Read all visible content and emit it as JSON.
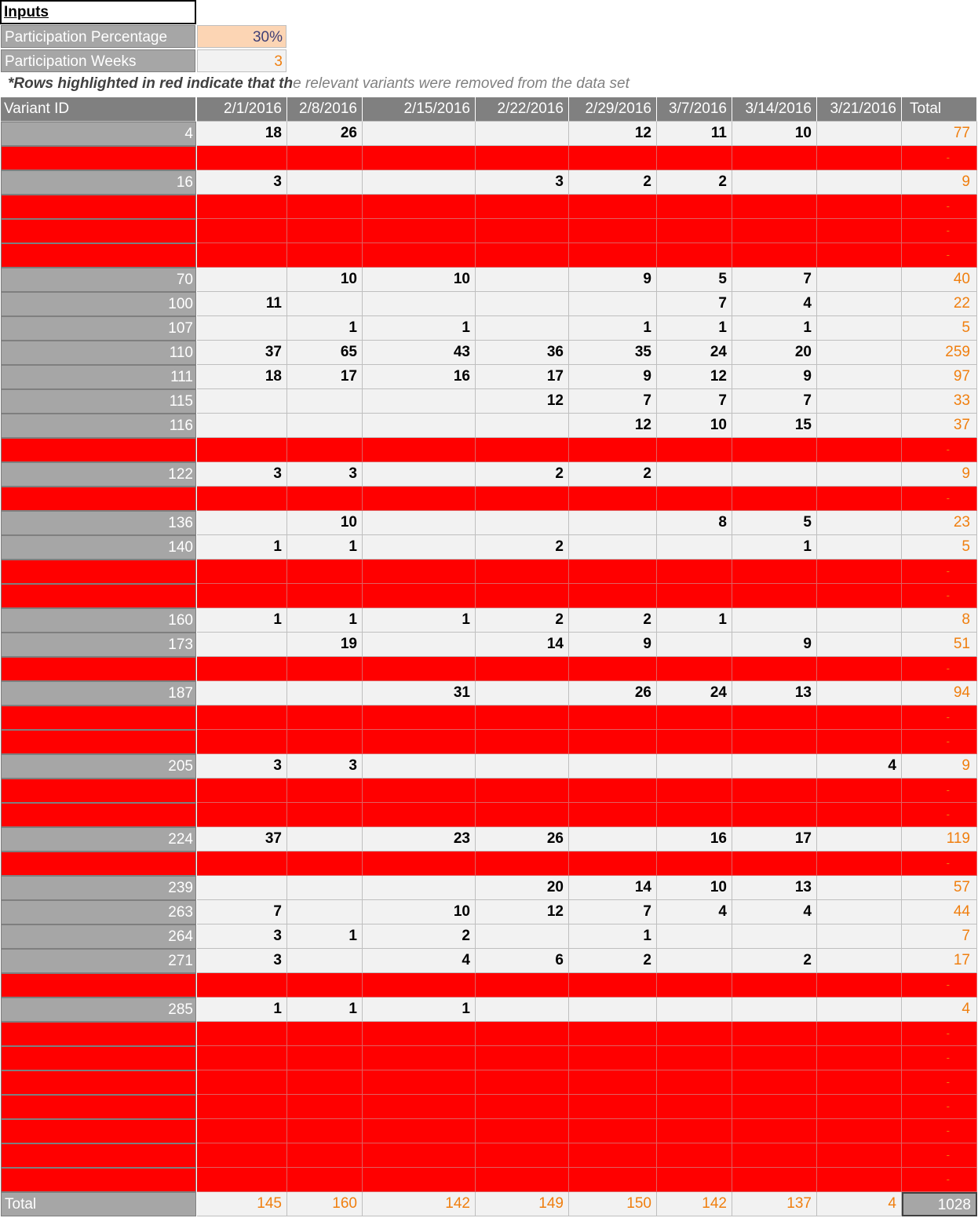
{
  "inputs": {
    "title": "Inputs",
    "participation_percentage": {
      "label": "Participation Percentage",
      "value": "30%"
    },
    "participation_weeks": {
      "label": "Participation Weeks",
      "value": "3"
    }
  },
  "note": {
    "bold_part": "*Rows highlighted in red indicate that th",
    "rest": "e relevant variants were removed from the data set"
  },
  "colors": {
    "removed": "#ff0000",
    "total_text": "#f07f0f",
    "header_bg": "#808080",
    "id_bg": "#a6a6a6"
  },
  "table": {
    "headers": [
      "Variant ID",
      "2/1/2016",
      "2/8/2016",
      "2/15/2016",
      "2/22/2016",
      "2/29/2016",
      "3/7/2016",
      "3/14/2016",
      "3/21/2016",
      "Total"
    ],
    "rows": [
      {
        "id": "4",
        "removed": false,
        "values": [
          "18",
          "26",
          "",
          "",
          "12",
          "11",
          "10",
          ""
        ],
        "total": "77"
      },
      {
        "id": "",
        "removed": true,
        "values": [
          "",
          "",
          "",
          "",
          "",
          "",
          "",
          ""
        ],
        "total": "-"
      },
      {
        "id": "16",
        "removed": false,
        "values": [
          "3",
          "",
          "",
          "3",
          "2",
          "2",
          "",
          ""
        ],
        "total": "9"
      },
      {
        "id": "",
        "removed": true,
        "values": [
          "",
          "",
          "",
          "",
          "",
          "",
          "",
          ""
        ],
        "total": "-"
      },
      {
        "id": "",
        "removed": true,
        "values": [
          "",
          "",
          "",
          "",
          "",
          "",
          "",
          ""
        ],
        "total": "-"
      },
      {
        "id": "",
        "removed": true,
        "values": [
          "",
          "",
          "",
          "",
          "",
          "",
          "",
          ""
        ],
        "total": "-"
      },
      {
        "id": "70",
        "removed": false,
        "values": [
          "",
          "10",
          "10",
          "",
          "9",
          "5",
          "7",
          ""
        ],
        "total": "40"
      },
      {
        "id": "100",
        "removed": false,
        "values": [
          "11",
          "",
          "",
          "",
          "",
          "7",
          "4",
          ""
        ],
        "total": "22"
      },
      {
        "id": "107",
        "removed": false,
        "values": [
          "",
          "1",
          "1",
          "",
          "1",
          "1",
          "1",
          ""
        ],
        "total": "5"
      },
      {
        "id": "110",
        "removed": false,
        "values": [
          "37",
          "65",
          "43",
          "36",
          "35",
          "24",
          "20",
          ""
        ],
        "total": "259"
      },
      {
        "id": "111",
        "removed": false,
        "values": [
          "18",
          "17",
          "16",
          "17",
          "9",
          "12",
          "9",
          ""
        ],
        "total": "97"
      },
      {
        "id": "115",
        "removed": false,
        "values": [
          "",
          "",
          "",
          "12",
          "7",
          "7",
          "7",
          ""
        ],
        "total": "33"
      },
      {
        "id": "116",
        "removed": false,
        "values": [
          "",
          "",
          "",
          "",
          "12",
          "10",
          "15",
          ""
        ],
        "total": "37"
      },
      {
        "id": "",
        "removed": true,
        "values": [
          "",
          "",
          "",
          "",
          "",
          "",
          "",
          ""
        ],
        "total": "-"
      },
      {
        "id": "122",
        "removed": false,
        "values": [
          "3",
          "3",
          "",
          "2",
          "2",
          "",
          "",
          ""
        ],
        "total": "9"
      },
      {
        "id": "",
        "removed": true,
        "values": [
          "",
          "",
          "",
          "",
          "",
          "",
          "",
          ""
        ],
        "total": "-"
      },
      {
        "id": "136",
        "removed": false,
        "values": [
          "",
          "10",
          "",
          "",
          "",
          "8",
          "5",
          ""
        ],
        "total": "23"
      },
      {
        "id": "140",
        "removed": false,
        "values": [
          "1",
          "1",
          "",
          "2",
          "",
          "",
          "1",
          ""
        ],
        "total": "5"
      },
      {
        "id": "",
        "removed": true,
        "values": [
          "",
          "",
          "",
          "",
          "",
          "",
          "",
          ""
        ],
        "total": "-"
      },
      {
        "id": "",
        "removed": true,
        "values": [
          "",
          "",
          "",
          "",
          "",
          "",
          "",
          ""
        ],
        "total": "-"
      },
      {
        "id": "160",
        "removed": false,
        "values": [
          "1",
          "1",
          "1",
          "2",
          "2",
          "1",
          "",
          ""
        ],
        "total": "8"
      },
      {
        "id": "173",
        "removed": false,
        "values": [
          "",
          "19",
          "",
          "14",
          "9",
          "",
          "9",
          ""
        ],
        "total": "51"
      },
      {
        "id": "",
        "removed": true,
        "values": [
          "",
          "",
          "",
          "",
          "",
          "",
          "",
          ""
        ],
        "total": "-"
      },
      {
        "id": "187",
        "removed": false,
        "values": [
          "",
          "",
          "31",
          "",
          "26",
          "24",
          "13",
          ""
        ],
        "total": "94"
      },
      {
        "id": "",
        "removed": true,
        "values": [
          "",
          "",
          "",
          "",
          "",
          "",
          "",
          ""
        ],
        "total": "-"
      },
      {
        "id": "",
        "removed": true,
        "values": [
          "",
          "",
          "",
          "",
          "",
          "",
          "",
          ""
        ],
        "total": "-"
      },
      {
        "id": "205",
        "removed": false,
        "values": [
          "3",
          "3",
          "",
          "",
          "",
          "",
          "",
          "4"
        ],
        "total": "9"
      },
      {
        "id": "",
        "removed": true,
        "values": [
          "",
          "",
          "",
          "",
          "",
          "",
          "",
          ""
        ],
        "total": "-"
      },
      {
        "id": "",
        "removed": true,
        "values": [
          "",
          "",
          "",
          "",
          "",
          "",
          "",
          ""
        ],
        "total": "-"
      },
      {
        "id": "224",
        "removed": false,
        "values": [
          "37",
          "",
          "23",
          "26",
          "",
          "16",
          "17",
          ""
        ],
        "total": "119"
      },
      {
        "id": "",
        "removed": true,
        "values": [
          "",
          "",
          "",
          "",
          "",
          "",
          "",
          ""
        ],
        "total": "-"
      },
      {
        "id": "239",
        "removed": false,
        "values": [
          "",
          "",
          "",
          "20",
          "14",
          "10",
          "13",
          ""
        ],
        "total": "57"
      },
      {
        "id": "263",
        "removed": false,
        "values": [
          "7",
          "",
          "10",
          "12",
          "7",
          "4",
          "4",
          ""
        ],
        "total": "44"
      },
      {
        "id": "264",
        "removed": false,
        "values": [
          "3",
          "1",
          "2",
          "",
          "1",
          "",
          "",
          ""
        ],
        "total": "7"
      },
      {
        "id": "271",
        "removed": false,
        "values": [
          "3",
          "",
          "4",
          "6",
          "2",
          "",
          "2",
          ""
        ],
        "total": "17"
      },
      {
        "id": "",
        "removed": true,
        "values": [
          "",
          "",
          "",
          "",
          "",
          "",
          "",
          ""
        ],
        "total": "-"
      },
      {
        "id": "285",
        "removed": false,
        "values": [
          "1",
          "1",
          "1",
          "",
          "",
          "",
          "",
          ""
        ],
        "total": "4"
      },
      {
        "id": "",
        "removed": true,
        "values": [
          "",
          "",
          "",
          "",
          "",
          "",
          "",
          ""
        ],
        "total": "-"
      },
      {
        "id": "",
        "removed": true,
        "values": [
          "",
          "",
          "",
          "",
          "",
          "",
          "",
          ""
        ],
        "total": "-"
      },
      {
        "id": "",
        "removed": true,
        "values": [
          "",
          "",
          "",
          "",
          "",
          "",
          "",
          ""
        ],
        "total": "-"
      },
      {
        "id": "",
        "removed": true,
        "values": [
          "",
          "",
          "",
          "",
          "",
          "",
          "",
          ""
        ],
        "total": "-"
      },
      {
        "id": "",
        "removed": true,
        "values": [
          "",
          "",
          "",
          "",
          "",
          "",
          "",
          ""
        ],
        "total": "-"
      },
      {
        "id": "",
        "removed": true,
        "values": [
          "",
          "",
          "",
          "",
          "",
          "",
          "",
          ""
        ],
        "total": "-"
      },
      {
        "id": "",
        "removed": true,
        "values": [
          "",
          "",
          "",
          "",
          "",
          "",
          "",
          ""
        ],
        "total": "-"
      }
    ],
    "totals": {
      "label": "Total",
      "values": [
        "145",
        "160",
        "142",
        "149",
        "150",
        "142",
        "137",
        "4"
      ],
      "grand": "1028"
    }
  }
}
